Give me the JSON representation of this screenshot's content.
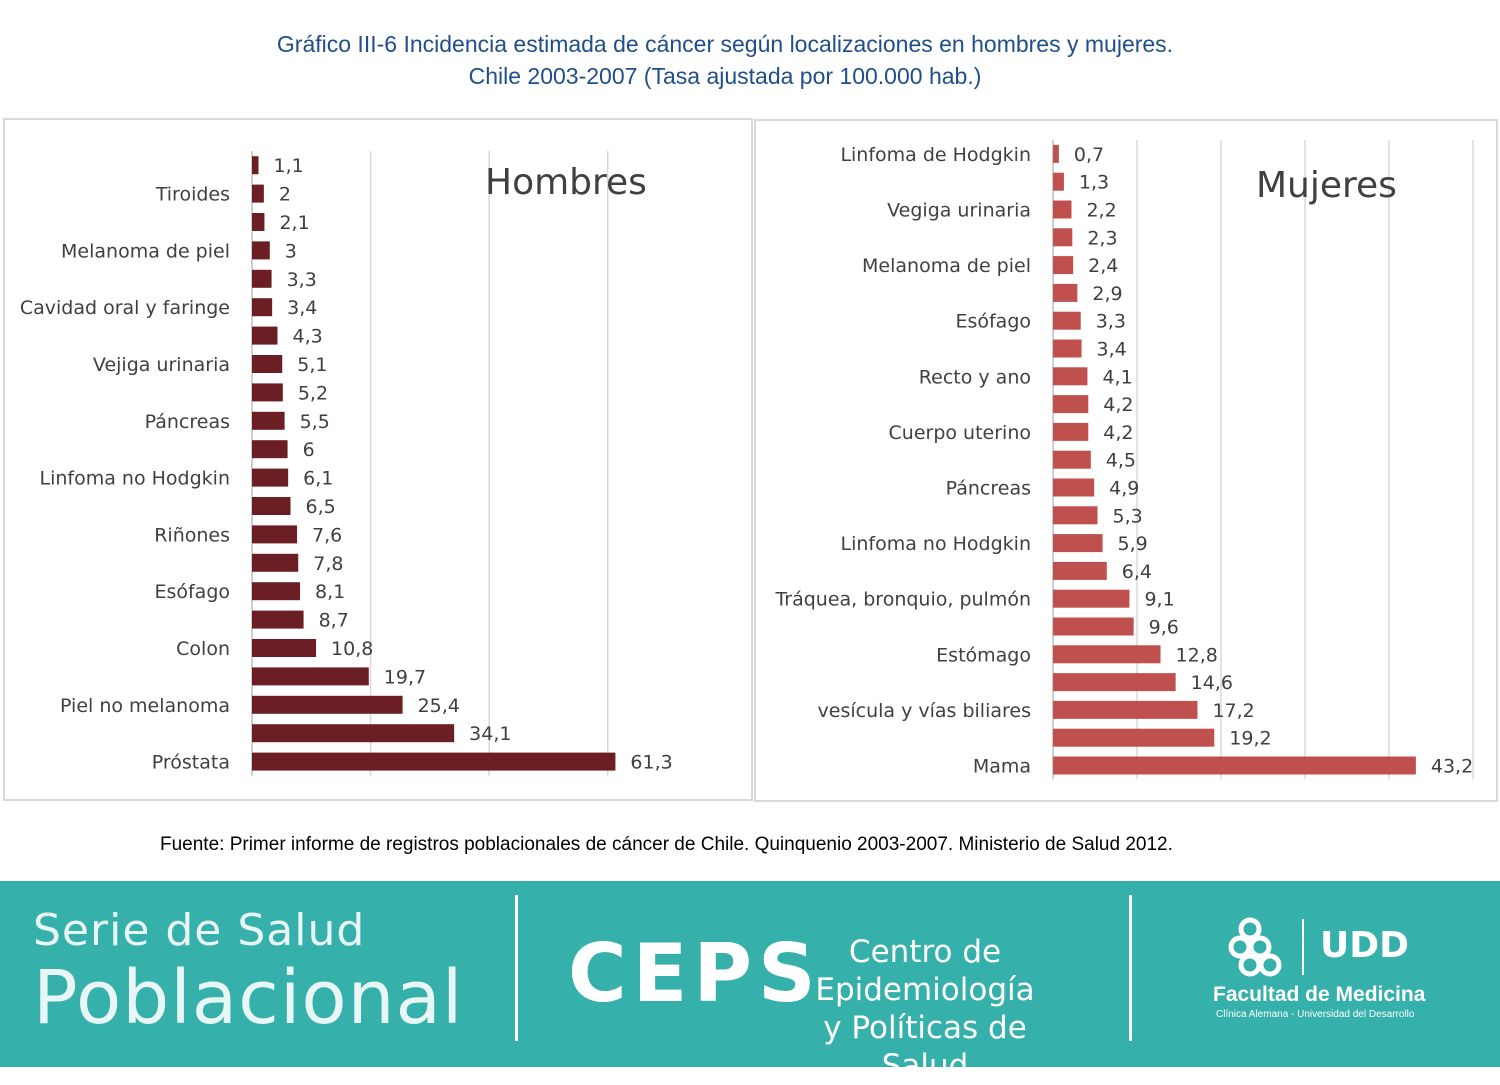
{
  "title": {
    "line1": "Gráfico III-6 Incidencia estimada de cáncer según localizaciones en hombres y mujeres.",
    "line2": "Chile 2003-2007 (Tasa ajustada por 100.000 hab.)"
  },
  "source": "Fuente: Primer informe de registros poblacionales de cáncer de Chile. Quinquenio 2003-2007. Ministerio de Salud 2012.",
  "footer": {
    "serie_line1": "Serie de Salud",
    "serie_line2": "Poblacional",
    "ceps": "CEPS",
    "ceps_sub_line1": "Centro de Epidemiología",
    "ceps_sub_line2": "y Políticas de Salud",
    "faculty": "Facultad de Medicina",
    "faculty_sub": "Clínica Alemana - Universidad del Desarrollo",
    "logo_text": "UDD"
  },
  "colors": {
    "title": "#1f4e8c",
    "men_bar": "#6b1f24",
    "women_bar": "#c0504d",
    "footer_bg": "#36b0ab"
  },
  "chart_data": [
    {
      "type": "bar",
      "orientation": "horizontal",
      "panel_label": "Hombres",
      "xlim": [
        0,
        70
      ],
      "grid": true,
      "categories": [
        "",
        "Tiroides",
        "",
        "Melanoma de piel",
        "",
        "Cavidad oral y faringe",
        "",
        "Vejiga urinaria",
        "",
        "Páncreas",
        "",
        "Linfoma no Hodgkin",
        "",
        "Riñones",
        "",
        "Esófago",
        "",
        "Colon",
        "",
        "Piel no melanoma",
        "",
        "Próstata"
      ],
      "values": [
        1.1,
        2,
        2.1,
        3,
        3.3,
        3.4,
        4.3,
        5.1,
        5.2,
        5.5,
        6,
        6.1,
        6.5,
        7.6,
        7.8,
        8.1,
        8.7,
        10.8,
        19.7,
        25.4,
        34.1,
        61.3
      ],
      "value_labels": [
        "1,1",
        "2",
        "2,1",
        "3",
        "3,3",
        "3,4",
        "4,3",
        "5,1",
        "5,2",
        "5,5",
        "6",
        "6,1",
        "6,5",
        "7,6",
        "7,8",
        "8,1",
        "8,7",
        "10,8",
        "19,7",
        "25,4",
        "34,1",
        "61,3"
      ]
    },
    {
      "type": "bar",
      "orientation": "horizontal",
      "panel_label": "Mujeres",
      "xlim": [
        0,
        50
      ],
      "grid": true,
      "categories": [
        "Linfoma de Hodgkin",
        "",
        "Vegiga urinaria",
        "",
        "Melanoma de piel",
        "",
        "Esófago",
        "",
        "Recto y ano",
        "",
        "Cuerpo uterino",
        "",
        "Páncreas",
        "",
        "Linfoma no Hodgkin",
        "",
        "Tráquea, bronquio, pulmón",
        "",
        "Estómago",
        "",
        "vesícula y vías biliares",
        "",
        "Mama"
      ],
      "values": [
        0.7,
        1.3,
        2.2,
        2.3,
        2.4,
        2.9,
        3.3,
        3.4,
        4.1,
        4.2,
        4.2,
        4.5,
        4.9,
        5.3,
        5.9,
        6.4,
        9.1,
        9.6,
        12.8,
        14.6,
        17.2,
        19.2,
        43.2
      ],
      "value_labels": [
        "0,7",
        "1,3",
        "2,2",
        "2,3",
        "2,4",
        "2,9",
        "3,3",
        "3,4",
        "4,1",
        "4,2",
        "4,2",
        "4,5",
        "4,9",
        "5,3",
        "5,9",
        "6,4",
        "9,1",
        "9,6",
        "12,8",
        "14,6",
        "17,2",
        "19,2",
        "43,2"
      ]
    }
  ]
}
